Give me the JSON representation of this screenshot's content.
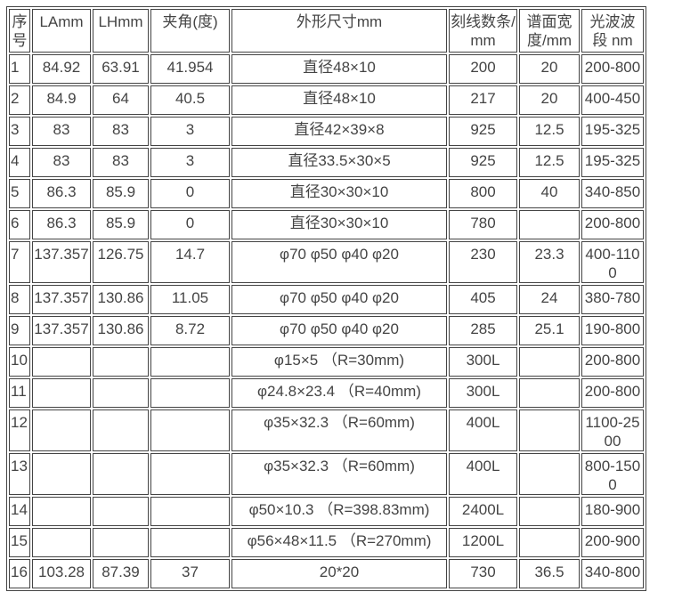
{
  "headers": [
    "序号",
    "LAmm",
    "LHmm",
    "夹角(度)",
    "外形尺寸mm",
    "刻线数条/mm",
    "谱面宽度/mm",
    "光波波段 nm"
  ],
  "rows": [
    [
      "1",
      "84.92",
      "63.91",
      "41.954",
      "直径48×10",
      "200",
      "20",
      "200-800"
    ],
    [
      "2",
      "84.9",
      "64",
      "40.5",
      "直径48×10",
      "217",
      "20",
      "400-450"
    ],
    [
      "3",
      "83",
      "83",
      "3",
      "直径42×39×8",
      "925",
      "12.5",
      "195-325"
    ],
    [
      "4",
      "83",
      "83",
      "3",
      "直径33.5×30×5",
      "925",
      "12.5",
      "195-325"
    ],
    [
      "5",
      "86.3",
      "85.9",
      "0",
      "直径30×30×10",
      "800",
      "40",
      "340-850"
    ],
    [
      "6",
      "86.3",
      "85.9",
      "0",
      "直径30×30×10",
      "780",
      "",
      "200-800"
    ],
    [
      "7",
      "137.357",
      "126.75",
      "14.7",
      "φ70 φ50 φ40 φ20",
      "230",
      "23.3",
      "400-1100"
    ],
    [
      "8",
      "137.357",
      "130.86",
      "11.05",
      "φ70 φ50 φ40 φ20",
      "405",
      "24",
      "380-780"
    ],
    [
      "9",
      "137.357",
      "130.86",
      "8.72",
      "φ70 φ50 φ40 φ20",
      "285",
      "25.1",
      "190-800"
    ],
    [
      "10",
      "",
      "",
      "",
      "φ15×5 （R=30mm)",
      "300L",
      "",
      "200-800"
    ],
    [
      "11",
      "",
      "",
      "",
      "φ24.8×23.4 （R=40mm)",
      "300L",
      "",
      "200-800"
    ],
    [
      "12",
      "",
      "",
      "",
      "φ35×32.3 （R=60mm)",
      "400L",
      "",
      "1100-2500"
    ],
    [
      "13",
      "",
      "",
      "",
      "φ35×32.3 （R=60mm)",
      "400L",
      "",
      "800-1500"
    ],
    [
      "14",
      "",
      "",
      "",
      "φ50×10.3 （R=398.83mm)",
      "2400L",
      "",
      "180-900"
    ],
    [
      "15",
      "",
      "",
      "",
      "φ56×48×11.5 （R=270mm)",
      "1200L",
      "",
      "200-900"
    ],
    [
      "16",
      "103.28",
      "87.39",
      "37",
      "20*20",
      "730",
      "36.5",
      "340-800"
    ]
  ]
}
